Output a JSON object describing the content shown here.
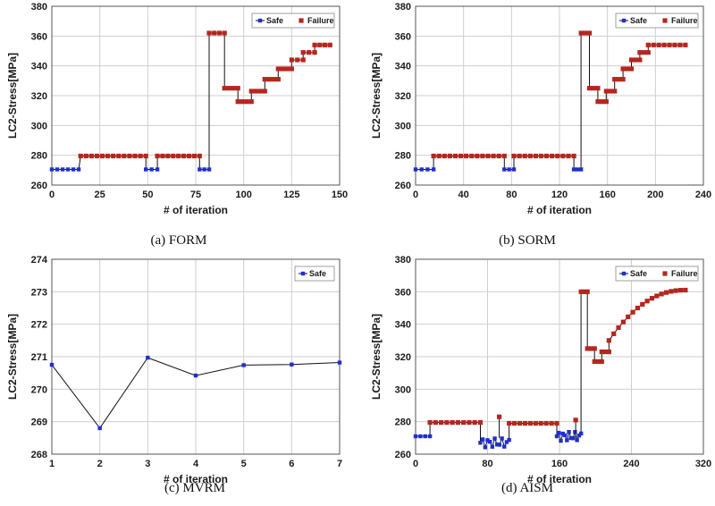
{
  "colors": {
    "safe": "#1f2fd0",
    "failure": "#b5261e",
    "line": "#111111"
  },
  "chart_data": [
    {
      "type": "line",
      "caption": "(a) FORM",
      "xlabel": "# of iteration",
      "ylabel": "LC2-Stress[MPa]",
      "xlim": [
        0,
        150
      ],
      "ylim": [
        260,
        380
      ],
      "xticks": [
        0,
        25,
        50,
        75,
        100,
        125,
        150
      ],
      "yticks": [
        260,
        280,
        300,
        320,
        340,
        360,
        380
      ],
      "legend": [
        "Safe",
        "Failure"
      ],
      "legend_position": "top-right",
      "segments": [
        {
          "x0": 0,
          "x1": 14,
          "y": 270.5,
          "cls": "safe"
        },
        {
          "x0": 15,
          "x1": 49,
          "y": 279.5,
          "cls": "failure"
        },
        {
          "x0": 49,
          "x1": 55,
          "y": 270.5,
          "cls": "safe"
        },
        {
          "x0": 55,
          "x1": 77,
          "y": 279.5,
          "cls": "failure"
        },
        {
          "x0": 77,
          "x1": 82,
          "y": 270.5,
          "cls": "safe"
        },
        {
          "x0": 82,
          "x1": 90,
          "y": 362,
          "cls": "failure"
        },
        {
          "x0": 90,
          "x1": 97,
          "y": 325,
          "cls": "failure"
        },
        {
          "x0": 97,
          "x1": 104,
          "y": 316,
          "cls": "failure"
        },
        {
          "x0": 104,
          "x1": 111,
          "y": 323,
          "cls": "failure"
        },
        {
          "x0": 111,
          "x1": 118,
          "y": 331,
          "cls": "failure"
        },
        {
          "x0": 118,
          "x1": 125,
          "y": 338,
          "cls": "failure"
        },
        {
          "x0": 125,
          "x1": 131,
          "y": 344,
          "cls": "failure"
        },
        {
          "x0": 131,
          "x1": 137,
          "y": 349,
          "cls": "failure"
        },
        {
          "x0": 137,
          "x1": 145,
          "y": 354,
          "cls": "failure"
        }
      ]
    },
    {
      "type": "line",
      "caption": "(b) SORM",
      "xlabel": "# of iteration",
      "ylabel": "LC2-Stress[MPa]",
      "xlim": [
        0,
        240
      ],
      "ylim": [
        260,
        380
      ],
      "xticks": [
        0,
        40,
        80,
        120,
        160,
        200,
        240
      ],
      "yticks": [
        260,
        280,
        300,
        320,
        340,
        360,
        380
      ],
      "legend": [
        "Safe",
        "Failure"
      ],
      "legend_position": "top-right",
      "segments": [
        {
          "x0": 0,
          "x1": 15,
          "y": 270.5,
          "cls": "safe"
        },
        {
          "x0": 15,
          "x1": 74,
          "y": 279.5,
          "cls": "failure"
        },
        {
          "x0": 74,
          "x1": 82,
          "y": 270.5,
          "cls": "safe"
        },
        {
          "x0": 82,
          "x1": 132,
          "y": 279.5,
          "cls": "failure"
        },
        {
          "x0": 132,
          "x1": 138,
          "y": 270.5,
          "cls": "safe"
        },
        {
          "x0": 138,
          "x1": 145,
          "y": 362,
          "cls": "failure"
        },
        {
          "x0": 145,
          "x1": 152,
          "y": 325,
          "cls": "failure"
        },
        {
          "x0": 152,
          "x1": 159,
          "y": 316,
          "cls": "failure"
        },
        {
          "x0": 159,
          "x1": 166,
          "y": 323,
          "cls": "failure"
        },
        {
          "x0": 166,
          "x1": 173,
          "y": 331,
          "cls": "failure"
        },
        {
          "x0": 173,
          "x1": 180,
          "y": 338,
          "cls": "failure"
        },
        {
          "x0": 180,
          "x1": 187,
          "y": 344,
          "cls": "failure"
        },
        {
          "x0": 187,
          "x1": 194,
          "y": 349,
          "cls": "failure"
        },
        {
          "x0": 194,
          "x1": 225,
          "y": 354,
          "cls": "failure"
        }
      ]
    },
    {
      "type": "line",
      "caption": "(c) MVRM",
      "xlabel": "# of iteration",
      "ylabel": "LC2-Stress[MPa]",
      "xlim": [
        1,
        7
      ],
      "ylim": [
        268,
        274
      ],
      "xticks": [
        1,
        2,
        3,
        4,
        5,
        6,
        7
      ],
      "yticks": [
        268,
        269,
        270,
        271,
        272,
        273,
        274
      ],
      "legend": [
        "Safe"
      ],
      "legend_position": "top-right",
      "points": [
        {
          "x": 1,
          "y": 270.75,
          "cls": "safe"
        },
        {
          "x": 2,
          "y": 268.8,
          "cls": "safe"
        },
        {
          "x": 3,
          "y": 270.97,
          "cls": "safe"
        },
        {
          "x": 4,
          "y": 270.42,
          "cls": "safe"
        },
        {
          "x": 5,
          "y": 270.74,
          "cls": "safe"
        },
        {
          "x": 6,
          "y": 270.76,
          "cls": "safe"
        },
        {
          "x": 7,
          "y": 270.82,
          "cls": "safe"
        }
      ]
    },
    {
      "type": "line",
      "caption": "(d) AISM",
      "xlabel": "# of iteration",
      "ylabel": "LC2-Stress[MPa]",
      "xlim": [
        0,
        320
      ],
      "ylim": [
        260,
        380
      ],
      "xticks": [
        0,
        80,
        160,
        240,
        320
      ],
      "yticks": [
        260,
        280,
        300,
        320,
        340,
        360,
        380
      ],
      "legend": [
        "Safe",
        "Failure"
      ],
      "legend_position": "top-right",
      "segments": [
        {
          "x0": 0,
          "x1": 16,
          "y": 271,
          "cls": "safe"
        },
        {
          "x0": 16,
          "x1": 72,
          "y": 279.5,
          "cls": "failure"
        },
        {
          "x0": 104,
          "x1": 157,
          "y": 279,
          "cls": "failure"
        },
        {
          "x0": 184,
          "x1": 191,
          "y": 360,
          "cls": "failure"
        },
        {
          "x0": 191,
          "x1": 199,
          "y": 325,
          "cls": "failure"
        },
        {
          "x0": 199,
          "x1": 207,
          "y": 317,
          "cls": "failure"
        },
        {
          "x0": 207,
          "x1": 215,
          "y": 323,
          "cls": "failure"
        }
      ],
      "noisy": [
        {
          "x0": 72,
          "x1": 104,
          "y": 267,
          "amp": 4,
          "cls": "safe"
        },
        {
          "x0": 157,
          "x1": 184,
          "y": 271,
          "amp": 4,
          "cls": "safe"
        }
      ],
      "spikes": [
        {
          "x": 93,
          "y": 283,
          "cls": "failure"
        },
        {
          "x": 178,
          "y": 281,
          "cls": "failure"
        }
      ],
      "curve": {
        "x0": 215,
        "x1": 300,
        "y_start": 330,
        "y_end": 361,
        "cls": "failure"
      }
    }
  ]
}
